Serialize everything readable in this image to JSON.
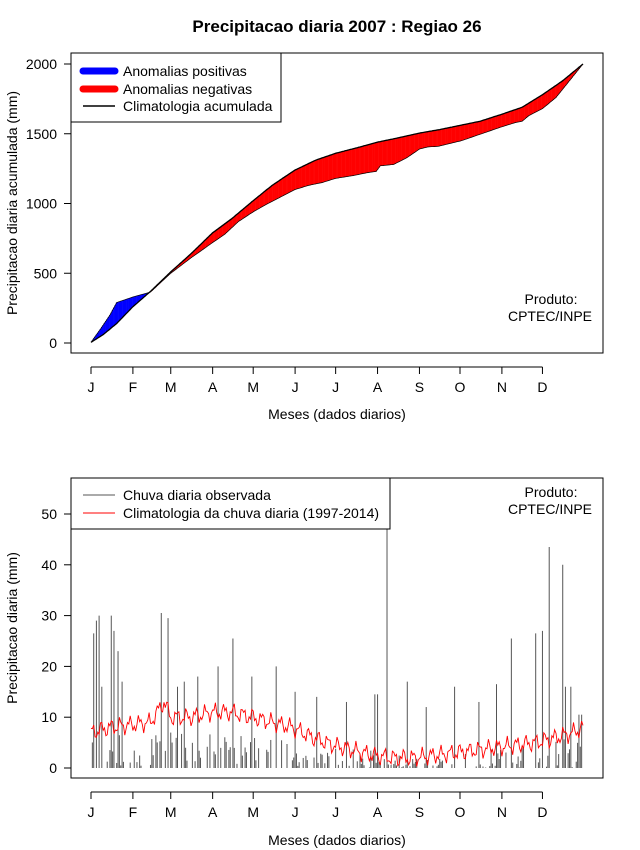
{
  "title": "Precipitacao diaria 2007 : Regiao 26",
  "credit": {
    "line1": "Produto:",
    "line2": "CPTEC/INPE"
  },
  "chart_data": [
    {
      "type": "area",
      "name": "accumulated",
      "ylabel": "Precipitacao diaria acumulada (mm)",
      "xlabel": "Meses (dados diarios)",
      "ylim": [
        0,
        2000
      ],
      "y_ticks": [
        0,
        500,
        1000,
        1500,
        2000
      ],
      "month_labels": [
        "J",
        "F",
        "M",
        "A",
        "M",
        "J",
        "J",
        "A",
        "S",
        "O",
        "N",
        "D"
      ],
      "legend": {
        "positive": "Anomalias positivas",
        "negative": "Anomalias negativas",
        "clim": "Climatologia acumulada"
      },
      "colors": {
        "positive": "#0000ff",
        "negative": "#ff0000",
        "line": "#000000"
      },
      "clim_days": [
        1,
        10,
        20,
        32,
        45,
        60,
        75,
        91,
        105,
        121,
        135,
        152,
        167,
        182,
        198,
        213,
        228,
        244,
        259,
        274,
        289,
        305,
        320,
        335,
        350,
        365
      ],
      "clim_values": [
        5,
        60,
        140,
        260,
        370,
        510,
        640,
        790,
        890,
        1020,
        1130,
        1240,
        1310,
        1360,
        1400,
        1440,
        1470,
        1505,
        1530,
        1560,
        1590,
        1640,
        1690,
        1780,
        1880,
        2000
      ],
      "obs_days": [
        1,
        8,
        15,
        20,
        26,
        32,
        45,
        60,
        75,
        91,
        100,
        110,
        121,
        130,
        140,
        152,
        162,
        172,
        182,
        195,
        205,
        212,
        215,
        225,
        235,
        244,
        250,
        258,
        275,
        290,
        305,
        315,
        320,
        325,
        335,
        345,
        355,
        365
      ],
      "obs_values": [
        5,
        100,
        200,
        290,
        310,
        330,
        365,
        500,
        610,
        720,
        780,
        870,
        940,
        990,
        1040,
        1100,
        1130,
        1150,
        1180,
        1200,
        1220,
        1230,
        1270,
        1280,
        1330,
        1390,
        1405,
        1410,
        1450,
        1500,
        1550,
        1580,
        1590,
        1630,
        1680,
        1760,
        1880,
        2000
      ]
    },
    {
      "type": "bar",
      "name": "daily",
      "ylabel": "Precipitacao diaria (mm)",
      "xlabel": "Meses (dados diarios)",
      "ylim": [
        0,
        55
      ],
      "y_ticks": [
        0,
        10,
        20,
        30,
        40,
        50
      ],
      "month_labels": [
        "J",
        "F",
        "M",
        "A",
        "M",
        "J",
        "J",
        "A",
        "S",
        "O",
        "N",
        "D"
      ],
      "legend": {
        "obs": "Chuva diaria observada",
        "clim": "Climatologia da chuva diaria (1997-2014)"
      },
      "colors": {
        "obs": "#555555",
        "clim": "#ff0000"
      },
      "peaks": [
        {
          "day": 3,
          "value": 26.5
        },
        {
          "day": 5,
          "value": 29
        },
        {
          "day": 7,
          "value": 30
        },
        {
          "day": 9,
          "value": 16
        },
        {
          "day": 16,
          "value": 30
        },
        {
          "day": 18,
          "value": 27
        },
        {
          "day": 21,
          "value": 23
        },
        {
          "day": 24,
          "value": 17
        },
        {
          "day": 53,
          "value": 30.5
        },
        {
          "day": 58,
          "value": 29.5
        },
        {
          "day": 65,
          "value": 16
        },
        {
          "day": 70,
          "value": 17
        },
        {
          "day": 80,
          "value": 18
        },
        {
          "day": 95,
          "value": 20
        },
        {
          "day": 106,
          "value": 25.5
        },
        {
          "day": 120,
          "value": 18
        },
        {
          "day": 138,
          "value": 20
        },
        {
          "day": 152,
          "value": 15
        },
        {
          "day": 168,
          "value": 14
        },
        {
          "day": 190,
          "value": 13
        },
        {
          "day": 211,
          "value": 14.5
        },
        {
          "day": 213,
          "value": 14.5
        },
        {
          "day": 220,
          "value": 56
        },
        {
          "day": 235,
          "value": 17
        },
        {
          "day": 249,
          "value": 12
        },
        {
          "day": 270,
          "value": 16
        },
        {
          "day": 288,
          "value": 13
        },
        {
          "day": 301,
          "value": 16.5
        },
        {
          "day": 312,
          "value": 25.5
        },
        {
          "day": 330,
          "value": 26.5
        },
        {
          "day": 335,
          "value": 27
        },
        {
          "day": 340,
          "value": 43.5
        },
        {
          "day": 350,
          "value": 40
        },
        {
          "day": 352,
          "value": 16
        },
        {
          "day": 356,
          "value": 16
        },
        {
          "day": 362,
          "value": 10.5
        },
        {
          "day": 364,
          "value": 10.5
        }
      ],
      "clim_days": [
        1,
        15,
        30,
        45,
        55,
        60,
        75,
        90,
        105,
        120,
        135,
        150,
        165,
        180,
        195,
        210,
        225,
        240,
        255,
        270,
        285,
        300,
        315,
        330,
        345,
        358,
        365
      ],
      "clim_values": [
        7,
        8,
        8.5,
        9,
        13,
        10,
        10,
        11,
        11,
        10,
        9,
        8,
        6,
        4.5,
        3.5,
        2.5,
        2,
        2,
        2.5,
        3,
        3.5,
        4,
        4.5,
        5,
        6,
        7,
        8
      ]
    }
  ]
}
